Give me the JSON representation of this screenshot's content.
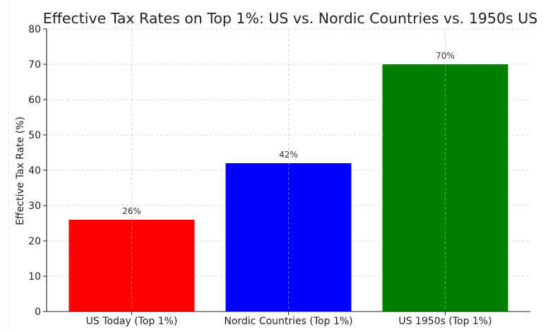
{
  "chart_data": {
    "type": "bar",
    "title": "Effective Tax Rates on Top 1%: US vs. Nordic Countries vs. 1950s US",
    "xlabel": "",
    "ylabel": "Effective Tax Rate (%)",
    "categories": [
      "US Today (Top 1%)",
      "Nordic Countries (Top 1%)",
      "US 1950s (Top 1%)"
    ],
    "values": [
      26,
      42,
      70
    ],
    "data_labels": [
      "26%",
      "42%",
      "70%"
    ],
    "colors": [
      "#ff0000",
      "#0000ff",
      "#008000"
    ],
    "ylim": [
      0,
      80
    ],
    "yticks": [
      0,
      10,
      20,
      30,
      40,
      50,
      60,
      70,
      80
    ],
    "ytick_labels": [
      "0",
      "10",
      "20",
      "30",
      "40",
      "50",
      "60",
      "70",
      "80"
    ],
    "grid": true,
    "grid_style": "dashed",
    "legend": "none"
  }
}
